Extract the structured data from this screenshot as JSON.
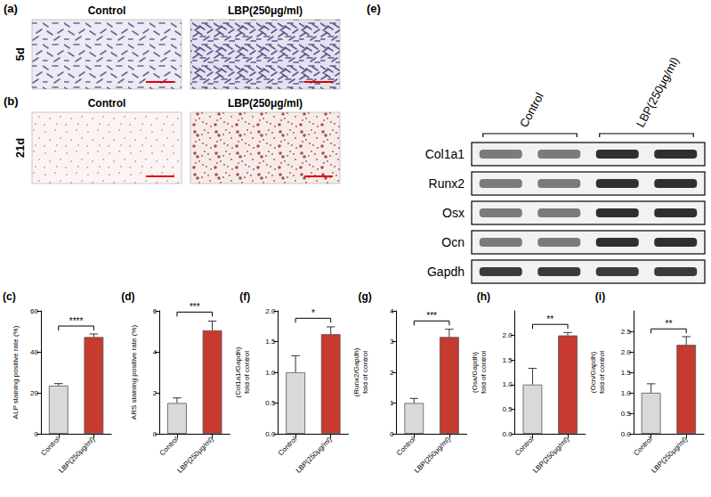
{
  "chart_data": [
    {
      "type": "bar",
      "panel": "(c)",
      "y_label": "ALP staining positive rate (%)",
      "categories": [
        "Control",
        "LBP(250μg/ml)"
      ],
      "values": [
        23.5,
        47.2
      ],
      "errors": [
        1.0,
        1.5
      ],
      "significance": "****",
      "colors": [
        "#d9d9d9",
        "#c63a2f"
      ],
      "ylim": [
        0,
        60
      ],
      "yticks": [
        0,
        20,
        40,
        60
      ],
      "grid": false
    },
    {
      "type": "bar",
      "panel": "(d)",
      "y_label": "ARS staining positive rate (%)",
      "categories": [
        "Control",
        "LBP(250μg/ml)"
      ],
      "values": [
        1.5,
        5.05
      ],
      "errors": [
        0.25,
        0.45
      ],
      "significance": "***",
      "colors": [
        "#d9d9d9",
        "#c63a2f"
      ],
      "ylim": [
        0,
        6
      ],
      "yticks": [
        0,
        2,
        4,
        6
      ],
      "grid": false
    },
    {
      "type": "bar",
      "panel": "(f)",
      "y_label": "(Col1a1/Gapdh) fold of control",
      "categories": [
        "Control",
        "LBP(250μg/ml)"
      ],
      "values": [
        1.0,
        1.62
      ],
      "errors": [
        0.27,
        0.12
      ],
      "significance": "*",
      "colors": [
        "#d9d9d9",
        "#c63a2f"
      ],
      "ylim": [
        0,
        2
      ],
      "yticks": [
        {
          "value": 0,
          "label": "0.0"
        },
        0.5,
        {
          "value": 1,
          "label": "1.0"
        },
        1.5,
        {
          "value": 2,
          "label": "2.0"
        }
      ],
      "grid": false
    },
    {
      "type": "bar",
      "panel": "(g)",
      "y_label": "(Runx2/Gapdh) fold of control",
      "categories": [
        "Control",
        "LBP(250μg/ml)"
      ],
      "values": [
        1.0,
        3.15
      ],
      "errors": [
        0.15,
        0.25
      ],
      "significance": "***",
      "colors": [
        "#d9d9d9",
        "#c63a2f"
      ],
      "ylim": [
        0,
        4
      ],
      "yticks": [
        0,
        1,
        2,
        3,
        4
      ],
      "grid": false
    },
    {
      "type": "bar",
      "panel": "(h)",
      "y_label": "(Osx/Gapdh) fold of control",
      "categories": [
        "Control",
        "LBP(250μg/ml)"
      ],
      "values": [
        1.0,
        2.0
      ],
      "errors": [
        0.33,
        0.06
      ],
      "significance": "**",
      "colors": [
        "#d9d9d9",
        "#c63a2f"
      ],
      "ylim": [
        0,
        2.5
      ],
      "yticks": [
        {
          "value": 0,
          "label": "0.0"
        },
        0.5,
        {
          "value": 1,
          "label": "1.0"
        },
        1.5,
        {
          "value": 2,
          "label": "2.0"
        }
      ],
      "grid": false
    },
    {
      "type": "bar",
      "panel": "(i)",
      "y_label": "(Ocn/Gapdh) fold of control",
      "categories": [
        "Control",
        "LBP(250μg/ml)"
      ],
      "values": [
        1.0,
        2.17
      ],
      "errors": [
        0.22,
        0.2
      ],
      "significance": "**",
      "colors": [
        "#d9d9d9",
        "#c63a2f"
      ],
      "ylim": [
        0,
        3
      ],
      "yticks": [
        {
          "value": 0,
          "label": "0.0"
        },
        0.5,
        {
          "value": 1,
          "label": "1.0"
        },
        1.5,
        {
          "value": 2,
          "label": "2.0"
        },
        2.5
      ],
      "grid": false
    }
  ],
  "images": [
    {
      "letter": "(a)",
      "row_label": "5d",
      "stain": "ALP",
      "columns": [
        "Control",
        "LBP(250μg/ml)"
      ]
    },
    {
      "letter": "(b)",
      "row_label": "21d",
      "stain": "ARS",
      "columns": [
        "Control",
        "LBP(250μg/ml)"
      ]
    }
  ],
  "blot": {
    "letter": "(e)",
    "groups": [
      "Control",
      "LBP(250μg/ml)"
    ],
    "lanes_per_group": 2,
    "rows": [
      "Col1a1",
      "Runx2",
      "Osx",
      "Ocn",
      "Gapdh"
    ]
  }
}
